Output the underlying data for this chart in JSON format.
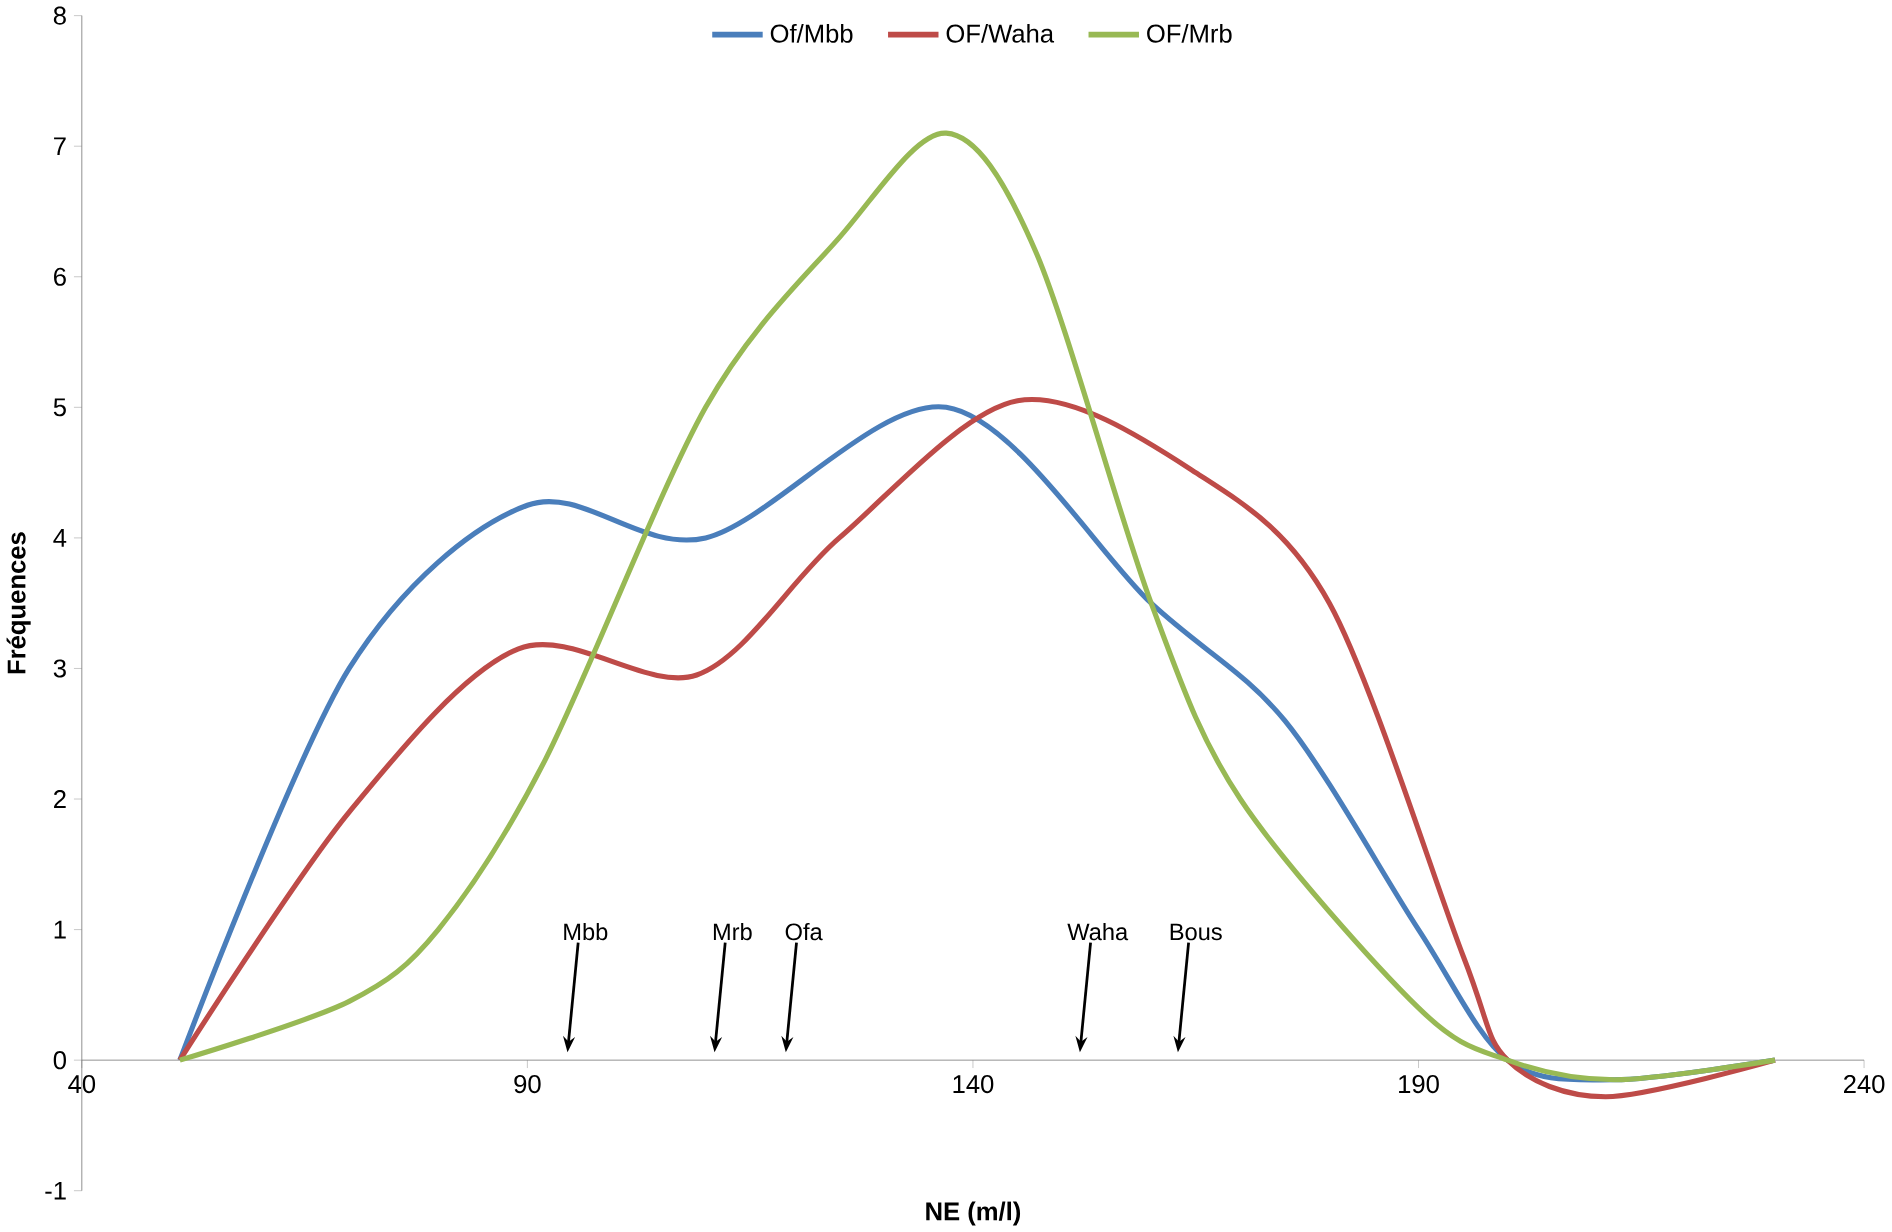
{
  "chart_data": {
    "type": "line",
    "xlabel": "NE (m/l)",
    "ylabel": "Fréquences",
    "xlim": [
      40,
      240
    ],
    "xticks": [
      40,
      90,
      140,
      190,
      240
    ],
    "ylim": [
      -1,
      8
    ],
    "yticks": [
      -1,
      0,
      1,
      2,
      3,
      4,
      5,
      6,
      7,
      8
    ],
    "legend": "top",
    "marker": "none",
    "grid": false,
    "series": [
      {
        "name": "Of/Mbb",
        "color": "#4a7ebb",
        "x": [
          51,
          70,
          90,
          110,
          137,
          160,
          175,
          190,
          200,
          212,
          230
        ],
        "values": [
          0,
          3.0,
          4.25,
          4.0,
          5.0,
          3.5,
          2.6,
          1.0,
          0,
          -0.15,
          0
        ]
      },
      {
        "name": "OF/Waha",
        "color": "#be4b48",
        "x": [
          51,
          70,
          89,
          109,
          125,
          145,
          165,
          180,
          195,
          200,
          211,
          230
        ],
        "values": [
          0,
          1.9,
          3.15,
          2.95,
          4.0,
          5.05,
          4.5,
          3.5,
          0.8,
          0,
          -0.28,
          0
        ]
      },
      {
        "name": "OF/Mrb",
        "color": "#98b954",
        "x": [
          51,
          70,
          80,
          92,
          110,
          125,
          137,
          147,
          160,
          170,
          190,
          200,
          212,
          230
        ],
        "values": [
          0,
          0.45,
          1.0,
          2.3,
          5.0,
          6.3,
          7.1,
          6.2,
          3.5,
          2.0,
          0.4,
          0,
          -0.15,
          0
        ]
      }
    ],
    "annotations": [
      "Mbb",
      "Mrb",
      "Ofa",
      "Waha",
      "Bous"
    ]
  }
}
